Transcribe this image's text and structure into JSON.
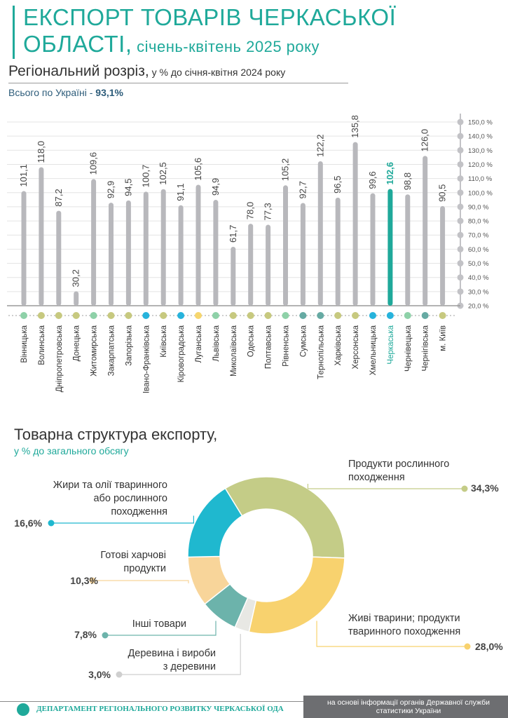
{
  "header": {
    "title_line1": "ЕКСПОРТ ТОВАРІВ ЧЕРКАСЬКОЇ",
    "title_line2_main": "ОБЛАСТІ,",
    "title_line2_sub": " січень-квітень 2025 року"
  },
  "section1": {
    "title": "Регіональний розріз,",
    "subtitle": " у % до січня-квітня 2024 року",
    "total_label": "Всього по Україні - ",
    "total_value": "93,1%"
  },
  "section2": {
    "title": "Товарна структура експорту,",
    "subtitle": "у % до загального обсягу"
  },
  "footer": {
    "department": "ДЕПАРТАМЕНТ РЕГІОНАЛЬНОГО РОЗВИТКУ ЧЕРКАСЬКОЇ ОДА",
    "source": "на основі інформації органів Державної служби статистики України"
  },
  "colors": {
    "bar": "#b8b8bc",
    "highlight": "#1fa99a",
    "green": "#8ed1a8",
    "olive": "#c7c97f",
    "blue": "#27b3dc",
    "yellow": "#f6d66e",
    "teal": "#66aaa3"
  },
  "chart_data": [
    {
      "type": "bar",
      "categories": [
        "Вінницька",
        "Волинська",
        "Дніпропетровська",
        "Донецька",
        "Житомирська",
        "Закарпатська",
        "Запорізька",
        "Івано-Франківська",
        "Київська",
        "Кіровоградська",
        "Луганська",
        "Львівська",
        "Миколаївська",
        "Одеська",
        "Полтавська",
        "Рівненська",
        "Сумська",
        "Тернопільська",
        "Харківська",
        "Херсонська",
        "Хмельницька",
        "Черкаська",
        "Чернівецька",
        "Чернігівська",
        "м. Київ"
      ],
      "values": [
        101.1,
        118.0,
        87.2,
        30.2,
        109.6,
        92.9,
        94.5,
        100.7,
        102.5,
        91.1,
        105.6,
        94.9,
        61.7,
        78.0,
        77.3,
        105.2,
        92.7,
        122.2,
        96.5,
        135.8,
        99.6,
        102.6,
        98.8,
        126.0,
        90.5
      ],
      "value_labels": [
        "101,1",
        "118,0",
        "87,2",
        "30,2",
        "109,6",
        "92,9",
        "94,5",
        "100,7",
        "102,5",
        "91,1",
        "105,6",
        "94,9",
        "61,7",
        "78,0",
        "77,3",
        "105,2",
        "92,7",
        "122,2",
        "96,5",
        "135,8",
        "99,6",
        "102,6",
        "98,8",
        "126,0",
        "90,5"
      ],
      "dot_colors": [
        "green",
        "olive",
        "olive",
        "olive",
        "green",
        "olive",
        "olive",
        "blue",
        "olive",
        "blue",
        "yellow",
        "green",
        "olive",
        "olive",
        "olive",
        "green",
        "teal",
        "teal",
        "olive",
        "olive",
        "blue",
        "blue",
        "green",
        "teal",
        "olive"
      ],
      "highlight": "Черкаська",
      "ylim": [
        20,
        150
      ],
      "yticks": [
        "20,0 %",
        "30,0 %",
        "40,0 %",
        "50,0 %",
        "60,0 %",
        "70,0 %",
        "80,0 %",
        "90,0 %",
        "100,0 %",
        "110,0 %",
        "120,0 %",
        "130,0 %",
        "140,0 %",
        "150,0 %"
      ],
      "grid": true
    },
    {
      "type": "pie",
      "categories": [
        "Продукти рослинного походження",
        "Живі тварини; продукти тваринного походження",
        "Деревина і вироби з деревини",
        "Інші товари",
        "Готові харчові продукти",
        "Жири та олії тваринного або рослинного походження"
      ],
      "values": [
        34.3,
        28.0,
        3.0,
        7.8,
        10.3,
        16.6
      ],
      "value_labels": [
        "34,3%",
        "28,0%",
        "3,0%",
        "7,8%",
        "10,3%",
        "16,6%"
      ],
      "colors": [
        "#c4cc87",
        "#f8d26e",
        "#e8e8e4",
        "#6cb3ab",
        "#f8d59a",
        "#1fb8cf"
      ]
    }
  ]
}
